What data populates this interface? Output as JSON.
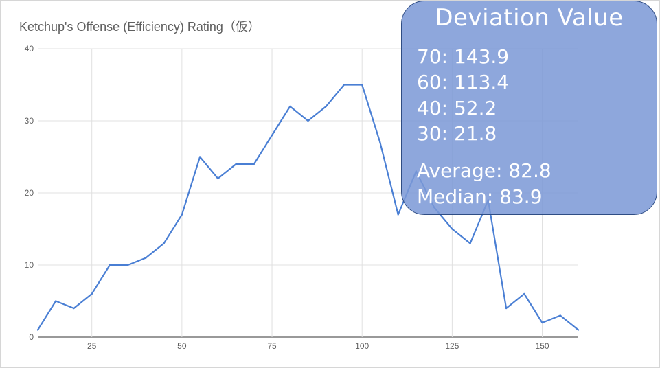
{
  "chart_data": {
    "type": "line",
    "title": "Ketchup's Offense (Efficiency) Rating（仮）",
    "xlabel": "",
    "ylabel": "",
    "xlim": [
      10,
      160
    ],
    "ylim": [
      0,
      40
    ],
    "x_ticks": [
      25,
      50,
      75,
      100,
      125,
      150
    ],
    "y_ticks": [
      0,
      10,
      20,
      30,
      40
    ],
    "grid": true,
    "legend": "none",
    "line_color": "#4a7fd4",
    "series": [
      {
        "x": [
          10,
          15,
          20,
          25,
          30,
          35,
          40,
          45,
          50,
          55,
          60,
          65,
          70,
          75,
          80,
          85,
          90,
          95,
          100,
          105,
          110,
          115,
          120,
          125,
          130,
          135,
          140,
          145,
          150,
          155,
          160
        ],
        "y": [
          1,
          5,
          4,
          6,
          10,
          10,
          11,
          13,
          17,
          25,
          22,
          24,
          24,
          28,
          32,
          30,
          32,
          35,
          35,
          27,
          17,
          23,
          18,
          15,
          13,
          19,
          4,
          6,
          2,
          3,
          1
        ]
      }
    ]
  },
  "stats_box": {
    "title": "Deviation Value",
    "lines": [
      "70: 143.9",
      "60: 113.4",
      "40: 52.2",
      "30: 21.8"
    ],
    "average": "Average: 82.8",
    "median": "Median: 83.9",
    "fill_color": "#7c99d6",
    "border_color": "#2f4d84"
  }
}
